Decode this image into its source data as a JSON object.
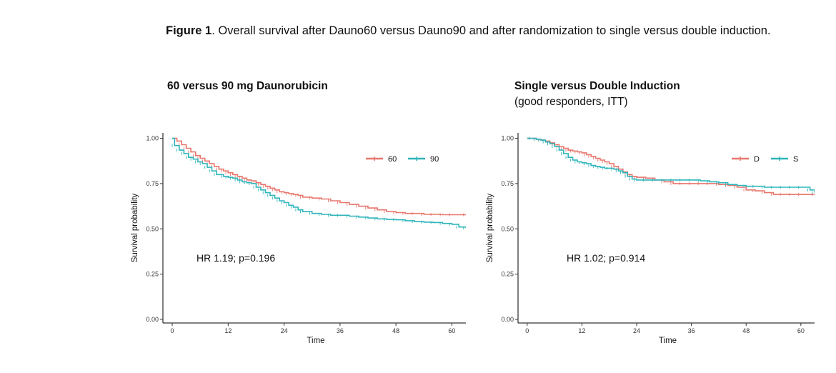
{
  "caption": {
    "bold": "Figure 1",
    "text": ". Overall survival after Dauno60 versus Dauno90 and after randomization to single versus double induction."
  },
  "colors": {
    "red": "#e8766d",
    "teal": "#2fb5bb",
    "axis": "#000000"
  },
  "chart_data": [
    {
      "type": "line",
      "step": true,
      "title": "60 versus 90 mg Daunorubicin",
      "subtitle": "",
      "xlabel": "Time",
      "ylabel": "Survival probability",
      "xlim": [
        -2,
        63
      ],
      "ylim": [
        -0.02,
        1.03
      ],
      "xticks": [
        0,
        12,
        24,
        36,
        48,
        60
      ],
      "yticks": [
        0.0,
        0.25,
        0.5,
        0.75,
        1.0
      ],
      "ytick_labels": [
        "0.00",
        "0.25",
        "0.50",
        "0.75",
        "1.00"
      ],
      "legend_position": "top-right",
      "annotation": "HR 1.19; p=0.196",
      "series": [
        {
          "name": "60",
          "color": "#e8766d",
          "x": [
            0,
            1,
            2,
            3,
            4,
            5,
            6,
            7,
            8,
            9,
            10,
            11,
            12,
            13,
            14,
            15,
            16,
            17,
            18,
            19,
            20,
            21,
            22,
            23,
            24,
            25,
            26,
            27,
            28,
            30,
            32,
            34,
            36,
            38,
            40,
            42,
            44,
            46,
            48,
            50,
            52,
            54,
            56,
            58,
            60,
            63
          ],
          "y": [
            1.0,
            0.985,
            0.965,
            0.945,
            0.925,
            0.905,
            0.89,
            0.875,
            0.86,
            0.845,
            0.83,
            0.82,
            0.81,
            0.8,
            0.79,
            0.78,
            0.77,
            0.765,
            0.755,
            0.745,
            0.735,
            0.725,
            0.715,
            0.705,
            0.7,
            0.695,
            0.69,
            0.685,
            0.675,
            0.67,
            0.665,
            0.655,
            0.645,
            0.635,
            0.625,
            0.615,
            0.605,
            0.595,
            0.59,
            0.585,
            0.585,
            0.58,
            0.58,
            0.578,
            0.578,
            0.578
          ]
        },
        {
          "name": "90",
          "color": "#2fb5bb",
          "x": [
            0,
            0.5,
            1.5,
            2.5,
            3.5,
            4.5,
            5.5,
            6.5,
            7.5,
            8.5,
            9.5,
            11,
            12,
            13,
            14,
            15,
            16,
            17,
            18,
            19,
            20,
            21,
            22,
            23,
            24,
            25,
            26,
            27,
            28,
            30,
            32,
            34,
            36,
            38,
            40,
            42,
            44,
            46,
            48,
            50,
            52,
            54,
            56,
            58,
            60,
            61.5,
            63
          ],
          "y": [
            1.0,
            0.96,
            0.935,
            0.915,
            0.895,
            0.885,
            0.87,
            0.86,
            0.84,
            0.82,
            0.8,
            0.79,
            0.785,
            0.78,
            0.77,
            0.76,
            0.755,
            0.75,
            0.73,
            0.715,
            0.7,
            0.685,
            0.67,
            0.655,
            0.645,
            0.63,
            0.62,
            0.605,
            0.595,
            0.585,
            0.58,
            0.575,
            0.575,
            0.57,
            0.565,
            0.56,
            0.555,
            0.552,
            0.55,
            0.545,
            0.54,
            0.537,
            0.535,
            0.53,
            0.525,
            0.51,
            0.505
          ]
        }
      ]
    },
    {
      "type": "line",
      "step": true,
      "title": "Single versus Double Induction",
      "subtitle": "(good responders, ITT)",
      "xlabel": "Time",
      "ylabel": "Survival probability",
      "xlim": [
        -2,
        63
      ],
      "ylim": [
        -0.02,
        1.03
      ],
      "xticks": [
        0,
        12,
        24,
        36,
        48,
        60
      ],
      "yticks": [
        0.0,
        0.25,
        0.5,
        0.75,
        1.0
      ],
      "ytick_labels": [
        "0.00",
        "0.25",
        "0.50",
        "0.75",
        "1.00"
      ],
      "legend_position": "top-right",
      "annotation": "HR 1.02; p=0.914",
      "series": [
        {
          "name": "D",
          "color": "#e8766d",
          "x": [
            0,
            1,
            2,
            3,
            4,
            5,
            6,
            7,
            8,
            9,
            10,
            11,
            12,
            13,
            14,
            15,
            16,
            17,
            18,
            19,
            20,
            21,
            22,
            23,
            24,
            26,
            28,
            30,
            32,
            34,
            36,
            38,
            40,
            42,
            44,
            46,
            48,
            50,
            52,
            54,
            56,
            58,
            60,
            63
          ],
          "y": [
            1.0,
            1.0,
            0.995,
            0.99,
            0.985,
            0.975,
            0.965,
            0.955,
            0.945,
            0.935,
            0.93,
            0.925,
            0.92,
            0.91,
            0.9,
            0.89,
            0.88,
            0.87,
            0.86,
            0.845,
            0.83,
            0.815,
            0.8,
            0.79,
            0.785,
            0.78,
            0.77,
            0.76,
            0.75,
            0.75,
            0.75,
            0.75,
            0.75,
            0.745,
            0.74,
            0.73,
            0.715,
            0.71,
            0.7,
            0.69,
            0.69,
            0.69,
            0.69,
            0.69
          ]
        },
        {
          "name": "S",
          "color": "#2fb5bb",
          "x": [
            0,
            1,
            2,
            3,
            4,
            5,
            6,
            7,
            8,
            9,
            10,
            11,
            12,
            13,
            14,
            15,
            16,
            17,
            18,
            19,
            20,
            21,
            22,
            23,
            24,
            26,
            28,
            30,
            32,
            34,
            36,
            38,
            40,
            42,
            44,
            46,
            48,
            50,
            52,
            54,
            56,
            58,
            60,
            62,
            63
          ],
          "y": [
            1.0,
            1.0,
            0.995,
            0.99,
            0.98,
            0.97,
            0.955,
            0.935,
            0.915,
            0.895,
            0.88,
            0.87,
            0.865,
            0.86,
            0.85,
            0.845,
            0.84,
            0.835,
            0.835,
            0.83,
            0.82,
            0.81,
            0.79,
            0.775,
            0.77,
            0.77,
            0.77,
            0.77,
            0.77,
            0.77,
            0.77,
            0.765,
            0.76,
            0.755,
            0.745,
            0.74,
            0.735,
            0.735,
            0.73,
            0.73,
            0.73,
            0.73,
            0.73,
            0.715,
            0.7
          ]
        }
      ]
    }
  ]
}
